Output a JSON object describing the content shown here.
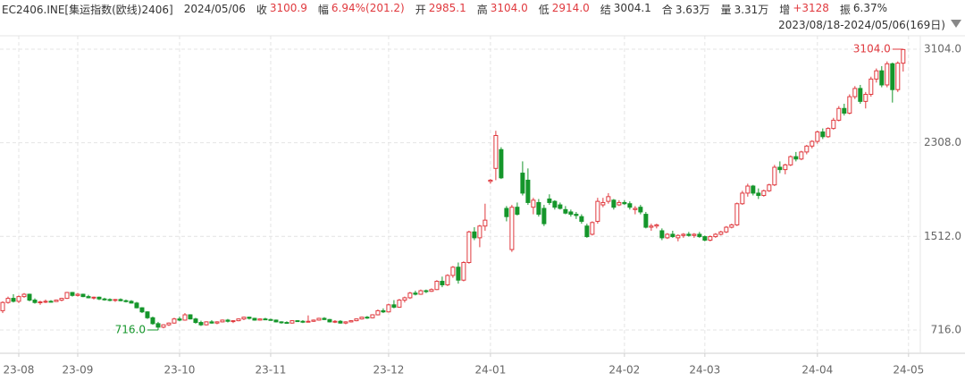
{
  "chart_data": {
    "type": "candlestick",
    "title": "EC2406.INE[集运指数(欧线)2406]",
    "date": "2024/05/06",
    "fields": [
      {
        "label": "收",
        "value": "3100.9",
        "color": "#e0393e"
      },
      {
        "label": "幅",
        "value": "6.94%(201.2)",
        "color": "#e0393e"
      },
      {
        "label": "开",
        "value": "2985.1",
        "color": "#e0393e"
      },
      {
        "label": "高",
        "value": "3104.0",
        "color": "#e0393e"
      },
      {
        "label": "低",
        "value": "2914.0",
        "color": "#e0393e"
      },
      {
        "label": "结",
        "value": "3004.1",
        "color": "#333333"
      },
      {
        "label": "合",
        "value": "3.63万",
        "color": "#333333"
      },
      {
        "label": "量",
        "value": "3.31万",
        "color": "#333333"
      },
      {
        "label": "增",
        "value": "+3128",
        "color": "#e0393e"
      },
      {
        "label": "振",
        "value": "6.37%",
        "color": "#333333"
      }
    ],
    "range_text": "2023/08/18-2024/05/06(169日)",
    "up_color": "#e0393e",
    "down_color": "#15962b",
    "ylim": [
      518,
      3218
    ],
    "yticks": [
      {
        "value": 716,
        "label": "716.0"
      },
      {
        "value": 1512,
        "label": "1512.0"
      },
      {
        "value": 2308,
        "label": "2308.0"
      },
      {
        "value": 3104,
        "label": "3104.0"
      }
    ],
    "xlim": [
      -0.5,
      171.2
    ],
    "xticks": [
      {
        "value": 3,
        "label": "23-08"
      },
      {
        "value": 14,
        "label": "23-09"
      },
      {
        "value": 33,
        "label": "23-10"
      },
      {
        "value": 50,
        "label": "23-11"
      },
      {
        "value": 72,
        "label": "23-12"
      },
      {
        "value": 91,
        "label": "24-01"
      },
      {
        "value": 116,
        "label": "24-02"
      },
      {
        "value": 131,
        "label": "24-03"
      },
      {
        "value": 152,
        "label": "24-04"
      },
      {
        "value": 169,
        "label": "24-05"
      }
    ],
    "grid": true,
    "annotations": [
      {
        "value": 3104,
        "label": "3104.0",
        "color": "#e0393e"
      },
      {
        "value": 716,
        "label": "716.0",
        "color": "#15962b"
      }
    ],
    "ohlc": [
      [
        880,
        960,
        860,
        950
      ],
      [
        950,
        1000,
        940,
        985
      ],
      [
        985,
        1020,
        950,
        960
      ],
      [
        960,
        1010,
        945,
        1000
      ],
      [
        1000,
        1030,
        990,
        1020
      ],
      [
        1020,
        1025,
        960,
        970
      ],
      [
        970,
        985,
        940,
        950
      ],
      [
        950,
        965,
        930,
        955
      ],
      [
        955,
        975,
        945,
        960
      ],
      [
        960,
        970,
        950,
        958
      ],
      [
        958,
        975,
        955,
        970
      ],
      [
        970,
        990,
        960,
        985
      ],
      [
        985,
        1040,
        980,
        1035
      ],
      [
        1035,
        1040,
        1000,
        1010
      ],
      [
        1010,
        1030,
        1000,
        1020
      ],
      [
        1020,
        1025,
        995,
        1000
      ],
      [
        1000,
        1015,
        985,
        990
      ],
      [
        990,
        1000,
        975,
        995
      ],
      [
        995,
        1000,
        970,
        980
      ],
      [
        980,
        990,
        965,
        975
      ],
      [
        975,
        985,
        960,
        970
      ],
      [
        970,
        980,
        955,
        975
      ],
      [
        975,
        985,
        960,
        965
      ],
      [
        965,
        975,
        950,
        960
      ],
      [
        960,
        970,
        940,
        945
      ],
      [
        945,
        955,
        900,
        905
      ],
      [
        905,
        910,
        860,
        870
      ],
      [
        870,
        875,
        810,
        820
      ],
      [
        820,
        830,
        760,
        770
      ],
      [
        770,
        785,
        716,
        740
      ],
      [
        740,
        765,
        730,
        760
      ],
      [
        760,
        780,
        750,
        775
      ],
      [
        775,
        820,
        770,
        810
      ],
      [
        810,
        830,
        790,
        800
      ],
      [
        800,
        860,
        795,
        845
      ],
      [
        845,
        850,
        805,
        810
      ],
      [
        810,
        820,
        770,
        780
      ],
      [
        780,
        795,
        750,
        760
      ],
      [
        760,
        790,
        755,
        785
      ],
      [
        785,
        800,
        770,
        775
      ],
      [
        775,
        790,
        765,
        785
      ],
      [
        785,
        805,
        780,
        800
      ],
      [
        800,
        810,
        780,
        790
      ],
      [
        790,
        800,
        775,
        795
      ],
      [
        795,
        815,
        790,
        810
      ],
      [
        810,
        830,
        800,
        825
      ],
      [
        825,
        830,
        805,
        815
      ],
      [
        815,
        820,
        795,
        800
      ],
      [
        800,
        815,
        795,
        810
      ],
      [
        810,
        820,
        800,
        805
      ],
      [
        805,
        812,
        795,
        800
      ],
      [
        800,
        805,
        780,
        785
      ],
      [
        785,
        790,
        770,
        780
      ],
      [
        780,
        790,
        770,
        775
      ],
      [
        775,
        800,
        770,
        795
      ],
      [
        795,
        800,
        785,
        790
      ],
      [
        790,
        800,
        775,
        785
      ],
      [
        785,
        840,
        780,
        790
      ],
      [
        790,
        805,
        785,
        800
      ],
      [
        800,
        820,
        795,
        815
      ],
      [
        815,
        825,
        800,
        805
      ],
      [
        805,
        810,
        780,
        785
      ],
      [
        785,
        800,
        775,
        790
      ],
      [
        790,
        800,
        770,
        775
      ],
      [
        775,
        790,
        765,
        785
      ],
      [
        785,
        800,
        780,
        795
      ],
      [
        795,
        815,
        790,
        810
      ],
      [
        810,
        830,
        805,
        825
      ],
      [
        825,
        835,
        810,
        820
      ],
      [
        820,
        850,
        815,
        845
      ],
      [
        845,
        890,
        840,
        880
      ],
      [
        880,
        900,
        860,
        870
      ],
      [
        870,
        940,
        865,
        930
      ],
      [
        930,
        970,
        900,
        910
      ],
      [
        910,
        980,
        905,
        970
      ],
      [
        970,
        1000,
        950,
        990
      ],
      [
        990,
        1040,
        980,
        1030
      ],
      [
        1030,
        1050,
        1010,
        1020
      ],
      [
        1020,
        1060,
        1015,
        1050
      ],
      [
        1050,
        1060,
        1030,
        1045
      ],
      [
        1045,
        1070,
        1040,
        1060
      ],
      [
        1060,
        1140,
        1055,
        1130
      ],
      [
        1130,
        1170,
        1080,
        1100
      ],
      [
        1100,
        1190,
        1090,
        1180
      ],
      [
        1180,
        1260,
        1160,
        1250
      ],
      [
        1250,
        1290,
        1110,
        1140
      ],
      [
        1140,
        1300,
        1130,
        1290
      ],
      [
        1290,
        1560,
        1280,
        1550
      ],
      [
        1550,
        1590,
        1480,
        1500
      ],
      [
        1500,
        1610,
        1420,
        1600
      ],
      [
        1600,
        1790,
        1560,
        1650
      ],
      [
        1980,
        2000,
        1960,
        1990
      ],
      [
        2090,
        2410,
        1990,
        2370
      ],
      [
        2250,
        2270,
        2000,
        2010
      ],
      [
        1750,
        1770,
        1640,
        1680
      ],
      [
        1400,
        1780,
        1380,
        1760
      ],
      [
        1760,
        1800,
        1690,
        1700
      ],
      [
        2050,
        2150,
        1860,
        1880
      ],
      [
        1990,
        2090,
        1780,
        1800
      ],
      [
        1760,
        1840,
        1700,
        1820
      ],
      [
        1800,
        1830,
        1680,
        1700
      ],
      [
        1750,
        1780,
        1600,
        1620
      ],
      [
        1830,
        1870,
        1780,
        1800
      ],
      [
        1810,
        1820,
        1740,
        1760
      ],
      [
        1780,
        1800,
        1740,
        1750
      ],
      [
        1740,
        1770,
        1700,
        1710
      ],
      [
        1720,
        1740,
        1680,
        1700
      ],
      [
        1700,
        1720,
        1660,
        1690
      ],
      [
        1680,
        1700,
        1620,
        1640
      ],
      [
        1600,
        1620,
        1500,
        1510
      ],
      [
        1530,
        1640,
        1520,
        1630
      ],
      [
        1640,
        1840,
        1620,
        1810
      ],
      [
        1780,
        1840,
        1760,
        1800
      ],
      [
        1810,
        1880,
        1790,
        1850
      ],
      [
        1820,
        1830,
        1740,
        1760
      ],
      [
        1780,
        1820,
        1770,
        1800
      ],
      [
        1800,
        1820,
        1780,
        1790
      ],
      [
        1790,
        1810,
        1740,
        1760
      ],
      [
        1740,
        1770,
        1700,
        1750
      ],
      [
        1760,
        1780,
        1700,
        1720
      ],
      [
        1700,
        1720,
        1580,
        1590
      ],
      [
        1590,
        1620,
        1560,
        1600
      ],
      [
        1600,
        1620,
        1580,
        1610
      ],
      [
        1560,
        1580,
        1480,
        1500
      ],
      [
        1500,
        1540,
        1490,
        1530
      ],
      [
        1530,
        1560,
        1500,
        1510
      ],
      [
        1500,
        1530,
        1470,
        1520
      ],
      [
        1520,
        1540,
        1500,
        1530
      ],
      [
        1530,
        1550,
        1510,
        1520
      ],
      [
        1520,
        1540,
        1500,
        1530
      ],
      [
        1530,
        1550,
        1500,
        1510
      ],
      [
        1510,
        1520,
        1470,
        1480
      ],
      [
        1480,
        1520,
        1470,
        1510
      ],
      [
        1510,
        1540,
        1500,
        1530
      ],
      [
        1530,
        1560,
        1520,
        1550
      ],
      [
        1550,
        1600,
        1540,
        1590
      ],
      [
        1590,
        1620,
        1580,
        1610
      ],
      [
        1610,
        1800,
        1600,
        1790
      ],
      [
        1790,
        1900,
        1780,
        1880
      ],
      [
        1880,
        1960,
        1850,
        1940
      ],
      [
        1940,
        1950,
        1860,
        1880
      ],
      [
        1880,
        1920,
        1830,
        1860
      ],
      [
        1860,
        1910,
        1850,
        1900
      ],
      [
        1900,
        1960,
        1890,
        1950
      ],
      [
        1950,
        2120,
        1940,
        2100
      ],
      [
        2100,
        2150,
        2050,
        2080
      ],
      [
        2080,
        2130,
        2040,
        2120
      ],
      [
        2120,
        2200,
        2110,
        2190
      ],
      [
        2190,
        2230,
        2150,
        2170
      ],
      [
        2170,
        2240,
        2160,
        2230
      ],
      [
        2230,
        2290,
        2210,
        2280
      ],
      [
        2280,
        2330,
        2260,
        2320
      ],
      [
        2320,
        2410,
        2300,
        2400
      ],
      [
        2400,
        2430,
        2340,
        2360
      ],
      [
        2360,
        2440,
        2350,
        2430
      ],
      [
        2430,
        2520,
        2420,
        2500
      ],
      [
        2500,
        2620,
        2490,
        2600
      ],
      [
        2600,
        2640,
        2540,
        2560
      ],
      [
        2560,
        2720,
        2550,
        2700
      ],
      [
        2700,
        2790,
        2680,
        2770
      ],
      [
        2770,
        2800,
        2640,
        2660
      ],
      [
        2660,
        2740,
        2600,
        2720
      ],
      [
        2720,
        2870,
        2700,
        2850
      ],
      [
        2850,
        2940,
        2820,
        2920
      ],
      [
        2920,
        2960,
        2780,
        2800
      ],
      [
        2800,
        3000,
        2780,
        2980
      ],
      [
        2980,
        2990,
        2650,
        2760
      ],
      [
        2760,
        3000,
        2740,
        2985
      ],
      [
        2985,
        3104,
        2914,
        3100.9
      ]
    ]
  }
}
